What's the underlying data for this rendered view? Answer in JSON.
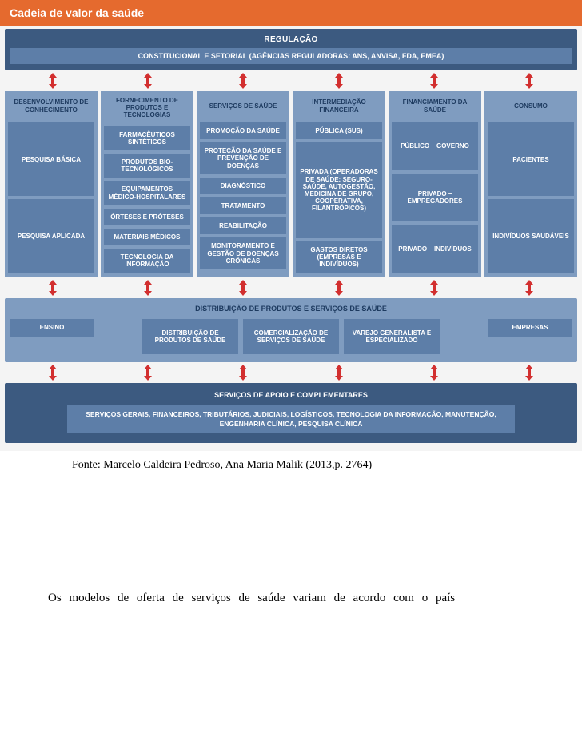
{
  "colors": {
    "header_bg": "#e56a2e",
    "header_text": "#ffffff",
    "panel_bg": "#f4f4f4",
    "dark_blue": "#3c5a80",
    "mid_blue": "#5d7ea8",
    "light_blue": "#7f9cc0",
    "col_title_text": "#1d3a5f",
    "cell_text": "#ffffff",
    "arrow": "#d22f2f",
    "white": "#ffffff"
  },
  "header": "Cadeia de valor da saúde",
  "regulation": {
    "title": "REGULAÇÃO",
    "subtitle": "CONSTITUCIONAL E SETORIAL (AGÊNCIAS REGULADORAS: ANS, ANVISA, FDA, EMEA)"
  },
  "columns": [
    {
      "title": "DESENVOLVIMENTO DE CONHECIMENTO",
      "cells": [
        "PESQUISA BÁSICA",
        "PESQUISA APLICADA"
      ],
      "cell_layout": "two-tall"
    },
    {
      "title": "FORNECIMENTO DE PRODUTOS E TECNOLOGIAS",
      "cells": [
        "FARMACÊUTICOS SINTÉTICOS",
        "PRODUTOS BIO-TECNOLÓGICOS",
        "EQUIPAMENTOS MÉDICO-HOSPITALARES",
        "ÓRTESES E PRÓTESES",
        "MATERIAIS MÉDICOS",
        "TECNOLOGIA DA INFORMAÇÃO"
      ],
      "cell_layout": "stack"
    },
    {
      "title": "SERVIÇOS DE SAÚDE",
      "cells": [
        "PROMOÇÃO DA SAÚDE",
        "PROTEÇÃO DA SAÚDE E PREVENÇÃO DE DOENÇAS",
        "DIAGNÓSTICO",
        "TRATAMENTO",
        "REABILITAÇÃO",
        "MONITORAMENTO E GESTÃO DE DOENÇAS CRÔNICAS"
      ],
      "cell_layout": "stack"
    },
    {
      "title": "INTERMEDIAÇÃO FINANCEIRA",
      "cells": [
        "PÚBLICA (SUS)",
        "PRIVADA (OPERADORAS DE SAÚDE: SEGURO-SAÚDE, AUTOGESTÃO, MEDICINA DE GRUPO, COOPERATIVA, FILANTRÓPICOS)",
        "GASTOS DIRETOS (EMPRESAS E INDIVÍDUOS)"
      ],
      "cell_layout": "three-mixed"
    },
    {
      "title": "FINANCIAMENTO DA SAÚDE",
      "cells": [
        "PÚBLICO – GOVERNO",
        "PRIVADO – EMPREGADORES",
        "PRIVADO – INDIVÍDUOS"
      ],
      "cell_layout": "three-even"
    },
    {
      "title": "CONSUMO",
      "cells": [
        "PACIENTES",
        "INDIVÍDUOS SAUDÁVEIS"
      ],
      "cell_layout": "two-tall"
    }
  ],
  "distribution": {
    "title": "DISTRIBUIÇÃO DE PRODUTOS E SERVIÇOS DE SAÚDE",
    "left": "ENSINO",
    "mid": [
      "DISTRIBUIÇÃO DE PRODUTOS DE SAÚDE",
      "COMERCIALIZAÇÃO DE SERVIÇOS DE SAÚDE",
      "VAREJO GENERALISTA E ESPECIALIZADO"
    ],
    "right": "EMPRESAS"
  },
  "support": {
    "title": "SERVIÇOS DE APOIO E COMPLEMENTARES",
    "text": "SERVIÇOS GERAIS, FINANCEIROS, TRIBUTÁRIOS, JUDICIAIS, LOGÍSTICOS, TECNOLOGIA DA INFORMAÇÃO, MANUTENÇÃO, ENGENHARIA CLÍNICA, PESQUISA CLÍNICA"
  },
  "caption": "Fonte: Marcelo Caldeira Pedroso, Ana Maria Malik  (2013,p. 2764)",
  "body_fragment": "Os  modelos  de  oferta  de  serviços  de  saúde  variam  de  acordo  com  o  país"
}
